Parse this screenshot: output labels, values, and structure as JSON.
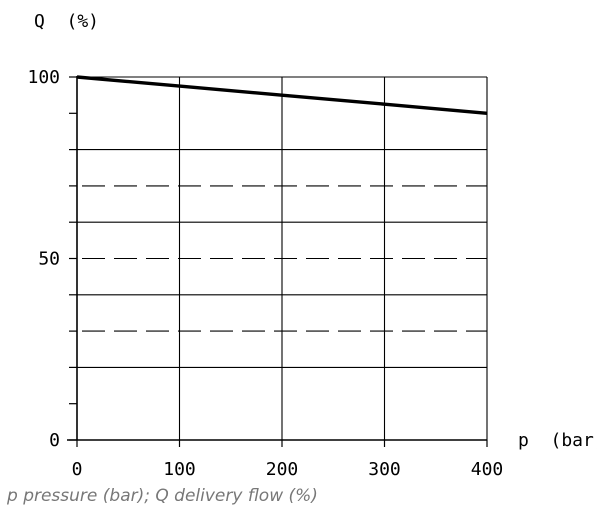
{
  "chart_data": {
    "type": "line",
    "ylabel": "Q  (%)",
    "xlabel": "p  (bar)",
    "xlim": [
      0,
      400
    ],
    "ylim": [
      0,
      100
    ],
    "x_ticks": [
      0,
      100,
      200,
      300,
      400
    ],
    "x_tick_labels": [
      "0",
      "100",
      "200",
      "300",
      "400"
    ],
    "y_tick_labels": [
      {
        "value": 0,
        "label": "0"
      },
      {
        "value": 50,
        "label": "50"
      },
      {
        "value": 100,
        "label": "100"
      }
    ],
    "y_minor_ticks": [
      0,
      10,
      20,
      30,
      40,
      50,
      60,
      70,
      80,
      90,
      100
    ],
    "h_grid_solid": [
      20,
      40,
      60,
      80,
      100
    ],
    "h_grid_dashed": [
      30,
      50,
      70
    ],
    "v_grid": [
      100,
      200,
      300,
      400
    ],
    "grid": true,
    "series": [
      {
        "x": [
          0,
          100,
          200,
          300,
          400
        ],
        "y": [
          100,
          97.5,
          95,
          92.5,
          90
        ],
        "color": "#000000"
      }
    ]
  },
  "caption": "p pressure (bar); Q delivery flow (%)"
}
